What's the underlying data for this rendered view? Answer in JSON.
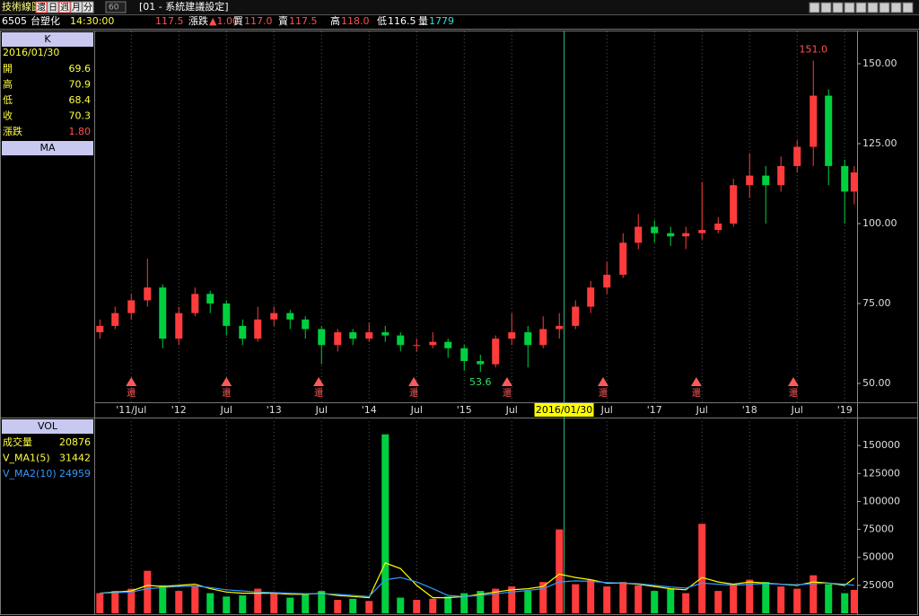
{
  "toolbar": {
    "title": "技術線圖",
    "buttons": [
      "還",
      "日",
      "週",
      "月",
      "分"
    ],
    "active": 2,
    "period": "60",
    "setting": "[01 - 系統建議設定]"
  },
  "quote": {
    "code": "6505",
    "name": "台塑化",
    "time": "14:30:00",
    "price": "117.5",
    "fields": [
      {
        "label": "漲跌",
        "value": "▲1.00"
      },
      {
        "label": "買",
        "value": "117.0"
      },
      {
        "label": "賣",
        "value": "117.5"
      },
      {
        "label": "高",
        "value": "118.0"
      },
      {
        "label": "低",
        "value": "116.5"
      },
      {
        "label": "量",
        "value": "1779"
      }
    ]
  },
  "left_panel": {
    "k_title": "K",
    "date": "2016/01/30",
    "k_rows": [
      {
        "label": "開",
        "value": "69.6"
      },
      {
        "label": "高",
        "value": "70.9"
      },
      {
        "label": "低",
        "value": "68.4"
      },
      {
        "label": "收",
        "value": "70.3"
      },
      {
        "label": "漲跌",
        "value": "1.80"
      }
    ],
    "ma_title": "MA",
    "vol_title": "VOL",
    "vol_rows": [
      {
        "label": "成交量",
        "value": "20876"
      },
      {
        "label": "V_MA1(5)",
        "value": "31442"
      },
      {
        "label": "V_MA2(10)",
        "value": "24959"
      }
    ]
  },
  "chart_data": [
    {
      "type": "candlestick",
      "up_color": "#ff3c3c",
      "down_color": "#00d040",
      "grid": true,
      "xlim": [
        2011.12,
        2019.13
      ],
      "ylim": [
        44.1,
        160.1
      ],
      "xticks": [
        {
          "value": 2011.5,
          "label": "'11/Jul"
        },
        {
          "value": 2012,
          "label": "'12"
        },
        {
          "value": 2012.5,
          "label": "Jul"
        },
        {
          "value": 2013,
          "label": "'13"
        },
        {
          "value": 2013.5,
          "label": "Jul"
        },
        {
          "value": 2014,
          "label": "'14"
        },
        {
          "value": 2014.5,
          "label": "Jul"
        },
        {
          "value": 2015,
          "label": "'15"
        },
        {
          "value": 2015.5,
          "label": "Jul"
        },
        {
          "value": 2016.5,
          "label": "Jul"
        },
        {
          "value": 2017,
          "label": "'17"
        },
        {
          "value": 2017.5,
          "label": "Jul"
        },
        {
          "value": 2018,
          "label": "'18"
        },
        {
          "value": 2018.5,
          "label": "Jul"
        },
        {
          "value": 2019,
          "label": "'19"
        }
      ],
      "yticks": [
        {
          "value": 50,
          "label": "50.00"
        },
        {
          "value": 75,
          "label": "75.00"
        },
        {
          "value": 100,
          "label": "100.00"
        },
        {
          "value": 125,
          "label": "125.00"
        },
        {
          "value": 150,
          "label": "150.00"
        }
      ],
      "x": [
        2011.17,
        2011.33,
        2011.5,
        2011.67,
        2011.83,
        2012.0,
        2012.17,
        2012.33,
        2012.5,
        2012.67,
        2012.83,
        2013.0,
        2013.17,
        2013.33,
        2013.5,
        2013.67,
        2013.83,
        2014.0,
        2014.17,
        2014.33,
        2014.5,
        2014.67,
        2014.83,
        2015.0,
        2015.17,
        2015.33,
        2015.5,
        2015.67,
        2015.83,
        2016.0,
        2016.17,
        2016.33,
        2016.5,
        2016.67,
        2016.83,
        2017.0,
        2017.17,
        2017.33,
        2017.5,
        2017.67,
        2017.83,
        2018.0,
        2018.17,
        2018.33,
        2018.5,
        2018.67,
        2018.83,
        2019.0,
        2019.1
      ],
      "open": [
        66,
        68,
        72,
        76,
        80,
        64,
        72,
        78,
        75,
        68,
        64,
        70,
        72,
        70,
        67,
        62,
        66,
        64,
        66,
        65,
        62,
        62,
        63,
        61,
        57,
        56,
        64,
        66,
        62,
        67,
        68,
        74,
        80,
        84,
        94,
        99,
        97,
        96,
        97,
        98,
        100,
        112,
        115,
        112,
        118,
        124,
        140,
        118,
        110
      ],
      "high": [
        70,
        74,
        78,
        89,
        81,
        74,
        80,
        79,
        76,
        70,
        74,
        74,
        73,
        71,
        68,
        67,
        67,
        69,
        68,
        66,
        64,
        66,
        64,
        62,
        59,
        65,
        72,
        68,
        71,
        72,
        76,
        82,
        88,
        97,
        103,
        101,
        99,
        99,
        113,
        102,
        114,
        122,
        118,
        121,
        126,
        151,
        142,
        120,
        118
      ],
      "low": [
        64,
        67,
        70,
        74,
        61,
        62,
        71,
        72,
        65,
        62,
        63,
        68,
        67,
        64,
        56,
        60,
        62,
        63,
        63,
        60,
        60,
        61,
        58,
        54,
        53.6,
        55,
        62,
        55,
        61,
        64,
        67,
        72,
        78,
        83,
        92,
        94,
        93,
        92,
        95,
        97,
        99,
        108,
        100,
        110,
        116,
        118,
        112,
        100,
        106
      ],
      "close": [
        68,
        72,
        76,
        80,
        64,
        72,
        78,
        75,
        68,
        64,
        70,
        72,
        70,
        67,
        62,
        66,
        64,
        66,
        65,
        62,
        62,
        63,
        61,
        57,
        56,
        64,
        66,
        62,
        67,
        68,
        74,
        80,
        84,
        94,
        99,
        97,
        96,
        97,
        98,
        100,
        112,
        115,
        112,
        118,
        124,
        140,
        118,
        110,
        116
      ],
      "events": [
        {
          "x": 2011.5,
          "label": "還"
        },
        {
          "x": 2012.5,
          "label": "還"
        },
        {
          "x": 2013.47,
          "label": "還"
        },
        {
          "x": 2014.47,
          "label": "還"
        },
        {
          "x": 2015.45,
          "label": "還"
        },
        {
          "x": 2016.46,
          "label": "還"
        },
        {
          "x": 2017.44,
          "label": "還"
        },
        {
          "x": 2018.46,
          "label": "還"
        }
      ],
      "annotations": [
        {
          "label": "151.0",
          "x": 2018.67,
          "value": 151.0,
          "color": "#ff5050"
        },
        {
          "label": "53.6",
          "x": 2015.17,
          "value": 53.6,
          "color": "#30e060"
        }
      ],
      "cursor": {
        "x": 2016.05,
        "label": "2016/01/30"
      }
    },
    {
      "type": "bar",
      "up_color": "#ff3c3c",
      "down_color": "#00d040",
      "xlim": [
        2011.12,
        2019.13
      ],
      "ylim": [
        0,
        175000
      ],
      "yticks": [
        25000,
        50000,
        75000,
        100000,
        125000,
        150000
      ],
      "x": [
        2011.17,
        2011.33,
        2011.5,
        2011.67,
        2011.83,
        2012.0,
        2012.17,
        2012.33,
        2012.5,
        2012.67,
        2012.83,
        2013.0,
        2013.17,
        2013.33,
        2013.5,
        2013.67,
        2013.83,
        2014.0,
        2014.17,
        2014.33,
        2014.5,
        2014.67,
        2014.83,
        2015.0,
        2015.17,
        2015.33,
        2015.5,
        2015.67,
        2015.83,
        2016.0,
        2016.17,
        2016.33,
        2016.5,
        2016.67,
        2016.83,
        2017.0,
        2017.17,
        2017.33,
        2017.5,
        2017.67,
        2017.83,
        2018.0,
        2018.17,
        2018.33,
        2018.5,
        2018.67,
        2018.83,
        2019.0,
        2019.1
      ],
      "values": [
        18000,
        20000,
        22000,
        38000,
        25000,
        20000,
        24000,
        18000,
        15000,
        16000,
        22000,
        19000,
        14000,
        17000,
        20000,
        12000,
        13000,
        11000,
        160000,
        14000,
        12000,
        13000,
        15000,
        18000,
        20000,
        22000,
        24000,
        20000,
        28000,
        75000,
        26000,
        30000,
        24000,
        28000,
        25000,
        20000,
        22000,
        18000,
        80000,
        20000,
        26000,
        30000,
        28000,
        24000,
        22000,
        34000,
        26000,
        18000,
        20876
      ],
      "series": [
        {
          "name": "V_MA1(5)",
          "color": "#ffff00",
          "values": [
            18000,
            19000,
            20000,
            25000,
            24000,
            25000,
            26000,
            22000,
            19000,
            18000,
            18000,
            18000,
            17000,
            17000,
            18000,
            16000,
            15000,
            14000,
            45000,
            40000,
            25000,
            14000,
            14000,
            15000,
            17000,
            19000,
            21000,
            22000,
            24000,
            35000,
            32000,
            30000,
            27000,
            27000,
            26000,
            24000,
            22000,
            21000,
            32000,
            28000,
            26000,
            28000,
            27000,
            26000,
            25000,
            28000,
            27000,
            25000,
            31442
          ]
        },
        {
          "name": "V_MA2(10)",
          "color": "#3399ff",
          "values": [
            18000,
            18500,
            19000,
            22000,
            23000,
            24000,
            24500,
            23000,
            21000,
            20000,
            19000,
            18500,
            18000,
            17500,
            17500,
            17000,
            16000,
            15000,
            30000,
            32000,
            28000,
            22000,
            16000,
            15000,
            16000,
            17500,
            19000,
            20500,
            22000,
            28000,
            29000,
            28500,
            27500,
            27000,
            26500,
            25000,
            23500,
            22500,
            27000,
            26000,
            25000,
            26000,
            26500,
            26000,
            25500,
            26500,
            27000,
            26000,
            24959
          ]
        }
      ]
    }
  ]
}
